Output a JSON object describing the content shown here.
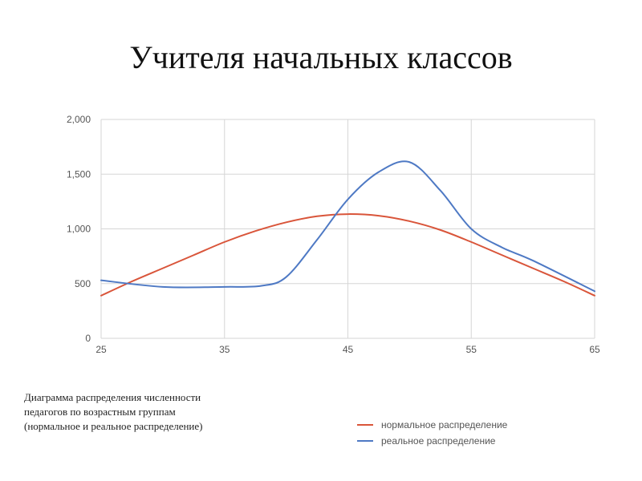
{
  "page": {
    "title": "Учителя начальных классов"
  },
  "caption": {
    "lines": [
      "Диаграмма распределения численности",
      "педагогов по возрастным группам",
      "(нормальное и реальное распределение)"
    ]
  },
  "colors": {
    "normal": "#d9553a",
    "real": "#4e79c4",
    "grid": "#d6d6d6"
  },
  "chart_data": {
    "type": "line",
    "title": "",
    "xlabel": "",
    "ylabel": "",
    "xlim": [
      25,
      65
    ],
    "ylim": [
      0,
      2000
    ],
    "x_ticks": [
      25,
      35,
      45,
      55,
      65
    ],
    "y_ticks": [
      0,
      500,
      1000,
      1500,
      2000
    ],
    "x_tick_labels": [
      "25",
      "35",
      "45",
      "55",
      "65"
    ],
    "y_tick_labels": [
      "0",
      "500",
      "1,000",
      "1,500",
      "2,000"
    ],
    "grid": true,
    "legend": "bottom-right",
    "series": [
      {
        "name": "нормальное распределение",
        "color": "#d9553a",
        "x": [
          25,
          27.5,
          30,
          32.5,
          35,
          37.5,
          40,
          42.5,
          45,
          47.5,
          50,
          52.5,
          55,
          57.5,
          60,
          62.5,
          65
        ],
        "y": [
          390,
          520,
          640,
          760,
          880,
          980,
          1060,
          1115,
          1135,
          1120,
          1070,
          990,
          880,
          760,
          640,
          520,
          390
        ]
      },
      {
        "name": "реальное распределение",
        "color": "#4e79c4",
        "x": [
          25,
          30,
          35,
          38,
          40,
          42.5,
          45,
          47.5,
          50,
          52.5,
          55,
          57.5,
          60,
          65
        ],
        "y": [
          530,
          470,
          470,
          480,
          560,
          900,
          1270,
          1520,
          1610,
          1350,
          1000,
          830,
          710,
          430
        ]
      }
    ]
  }
}
